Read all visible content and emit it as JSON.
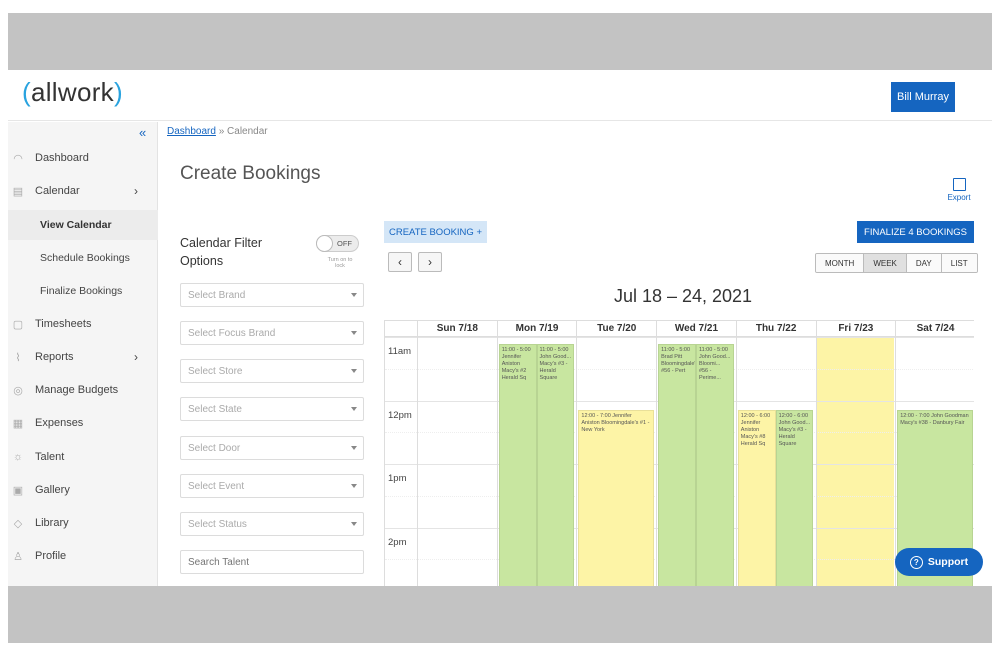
{
  "header": {
    "logo_open": "(",
    "logo_text": "allwork",
    "logo_close": ")",
    "user_name": "Bill Murray"
  },
  "sidebar": {
    "collapse_icon": "«",
    "items": [
      {
        "label": "Dashboard",
        "icon": "dashboard-icon"
      },
      {
        "label": "Calendar",
        "icon": "calendar-icon",
        "chevron": "›"
      },
      {
        "label": "View Calendar",
        "sub": true,
        "active": true
      },
      {
        "label": "Schedule Bookings",
        "sub": true
      },
      {
        "label": "Finalize Bookings",
        "sub": true
      },
      {
        "label": "Timesheets",
        "icon": "timesheet-icon"
      },
      {
        "label": "Reports",
        "icon": "reports-icon",
        "chevron": "›"
      },
      {
        "label": "Manage Budgets",
        "icon": "budget-icon"
      },
      {
        "label": "Expenses",
        "icon": "expenses-icon"
      },
      {
        "label": "Talent",
        "icon": "talent-icon"
      },
      {
        "label": "Gallery",
        "icon": "gallery-icon"
      },
      {
        "label": "Library",
        "icon": "library-icon"
      },
      {
        "label": "Profile",
        "icon": "profile-icon"
      }
    ]
  },
  "breadcrumb": {
    "link": "Dashboard",
    "sep": "»",
    "current": "Calendar"
  },
  "page_title": "Create Bookings",
  "export_label": "Export",
  "filters": {
    "title": "Calendar Filter Options",
    "toggle_label": "OFF",
    "toggle_hint": "Turn on to lock",
    "selects": [
      "Select Brand",
      "Select Focus Brand",
      "Select Store",
      "Select State",
      "Select Door",
      "Select Event",
      "Select Status"
    ],
    "search_placeholder": "Search Talent"
  },
  "toolbar": {
    "create_label": "CREATE BOOKING +",
    "finalize_label": "FINALIZE 4 BOOKINGS",
    "prev": "‹",
    "next": "›",
    "views": [
      "MONTH",
      "WEEK",
      "DAY",
      "LIST"
    ],
    "active_view": "WEEK"
  },
  "calendar": {
    "range": "Jul 18 – 24, 2021",
    "days": [
      "Sun 7/18",
      "Mon 7/19",
      "Tue 7/20",
      "Wed 7/21",
      "Thu 7/22",
      "Fri 7/23",
      "Sat 7/24"
    ],
    "times": [
      "11am",
      "12pm",
      "1pm",
      "2pm"
    ],
    "events": [
      {
        "day": 1,
        "sub": 0,
        "color": "green",
        "text": "11:00 - 5:00 Jennifer Aniston Macy's #2 Herald Sq"
      },
      {
        "day": 1,
        "sub": 1,
        "color": "green",
        "text": "11:00 - 5:00 John Good... Macy's #3 - Herald Square"
      },
      {
        "day": 2,
        "sub": 2,
        "color": "yellow",
        "text": "12:00 - 7:00 Jennifer Aniston Bloomingdale's #1 - New York"
      },
      {
        "day": 3,
        "sub": 0,
        "color": "green",
        "text": "11:00 - 5:00 Brad Pitt Bloomingdale's #56 - Pert"
      },
      {
        "day": 3,
        "sub": 1,
        "color": "green",
        "text": "11:00 - 5:00 John Good... Bloomi... #56 - Perime..."
      },
      {
        "day": 4,
        "sub": 0,
        "color": "yellow",
        "text": "12:00 - 6:00 Jennifer Aniston Macy's #8 Herald Sq"
      },
      {
        "day": 4,
        "sub": 1,
        "color": "green",
        "text": "12:00 - 6:00 John Good... Macy's #3 - Herald Square"
      },
      {
        "day": 6,
        "sub": 2,
        "color": "green",
        "text": "12:00 - 7:00 John Goodman Macy's #38 - Danbury Fair"
      }
    ]
  },
  "support_label": "Support"
}
